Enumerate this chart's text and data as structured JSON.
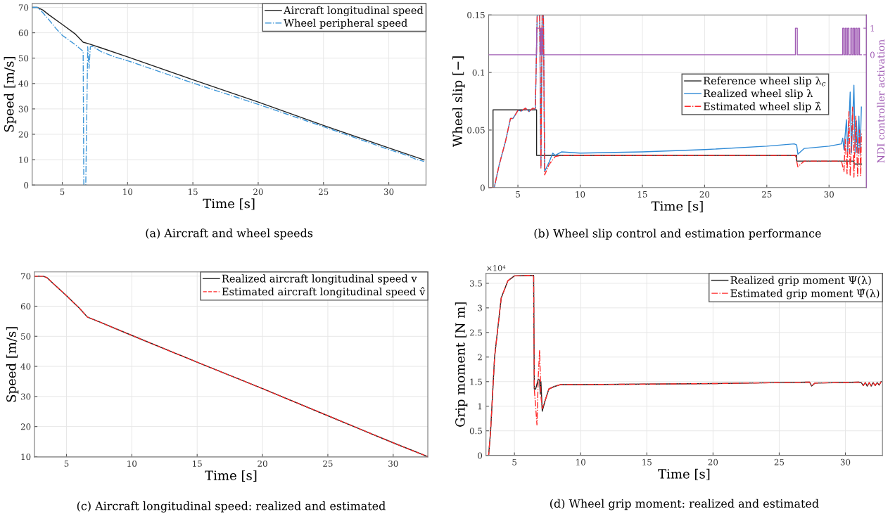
{
  "chart_data": [
    {
      "type": "line",
      "title": "(a) Aircraft and wheel speeds",
      "xlabel": "Time [s]",
      "ylabel": "Speed [m/s]",
      "xlim": [
        2.7,
        32.85
      ],
      "ylim": [
        0,
        71.5
      ],
      "xticks": [
        5,
        10,
        15,
        20,
        25,
        30
      ],
      "yticks": [
        0,
        10,
        20,
        30,
        40,
        50,
        60,
        70
      ],
      "grid": true,
      "legend": "top right",
      "series": [
        {
          "name": "Aircraft longitudinal speed",
          "color": "#222222",
          "line_style": "solid",
          "x": [
            2.7,
            3.1,
            3.5,
            4,
            5,
            6,
            6.6,
            7,
            8,
            10,
            15,
            20,
            25,
            30,
            32.7
          ],
          "values": [
            70,
            70,
            69,
            67,
            63.3,
            59.5,
            56.3,
            55.7,
            54,
            50.5,
            41.5,
            32.7,
            23.5,
            14.6,
            9.9
          ]
        },
        {
          "name": "Wheel peripheral speed",
          "color": "#3d96d8",
          "line_style": "dashdot",
          "x": [
            2.7,
            3.1,
            3.5,
            4,
            4.5,
            5,
            6,
            6.6,
            6.65,
            6.8,
            6.95,
            7.05,
            7.15,
            7.3,
            8,
            9,
            10,
            15,
            20,
            25,
            30,
            31.5,
            32,
            32.7
          ],
          "values": [
            70,
            70,
            68,
            65,
            61.8,
            59,
            55.3,
            52.7,
            0,
            0,
            54.5,
            46,
            54.5,
            54.7,
            52.5,
            50.5,
            49,
            40.2,
            31.8,
            23,
            14,
            11.5,
            10.3,
            9.3
          ]
        }
      ]
    },
    {
      "type": "line",
      "title": "(b) Wheel slip control and estimation performance",
      "xlabel": "Time [s]",
      "ylabel": "Wheel slip [−]",
      "y2label": "NDI controller activation",
      "xlim": [
        2.65,
        33
      ],
      "ylim": [
        0,
        0.15
      ],
      "y2lim": [
        -5,
        1.5
      ],
      "xticks": [
        5,
        10,
        15,
        20,
        25,
        30
      ],
      "yticks": [
        0,
        0.05,
        0.1,
        0.15
      ],
      "y2ticks": [
        0,
        1
      ],
      "grid": true,
      "legend": "right",
      "series": [
        {
          "name": "Reference wheel slip λ$_{c}$",
          "color": "#222222",
          "line_style": "solid",
          "x": [
            2.65,
            3.0,
            3.0,
            6.5,
            6.5,
            27.4,
            27.4,
            32.0,
            32.0,
            32.6
          ],
          "values": [
            0,
            0,
            0.0675,
            0.0675,
            0.028,
            0.028,
            0.023,
            0.023,
            0.0205,
            0.0205
          ]
        },
        {
          "name": "Realized wheel slip λ",
          "color": "#2f8ad6",
          "line_style": "solid",
          "x": [
            2.65,
            3.1,
            3.5,
            4,
            4.4,
            4.6,
            5,
            5.3,
            5.6,
            5.9,
            6.2,
            6.4,
            6.55,
            6.75,
            6.85,
            6.95,
            7.05,
            7.15,
            7.5,
            7.8,
            8,
            8.5,
            10,
            15,
            20,
            25,
            27.2,
            27.4,
            27.5,
            28,
            30,
            31,
            31.1,
            31.2,
            31.4,
            31.5,
            31.7,
            31.8,
            32.0,
            32.1,
            32.2,
            32.3,
            32.4,
            32.5,
            32.6
          ],
          "values": [
            0,
            0,
            0.02,
            0.04,
            0.06,
            0.06,
            0.067,
            0.0665,
            0.069,
            0.066,
            0.069,
            0.068,
            0.15,
            0.15,
            0.018,
            0.15,
            0.15,
            0.014,
            0.022,
            0.03,
            0.028,
            0.031,
            0.03,
            0.031,
            0.033,
            0.036,
            0.038,
            0.037,
            0.029,
            0.034,
            0.036,
            0.038,
            0.043,
            0.033,
            0.059,
            0.031,
            0.083,
            0.03,
            0.089,
            0.03,
            0.058,
            0.03,
            0.062,
            0.029,
            0.07
          ]
        },
        {
          "name": "Estimated wheel slip λ̂",
          "color": "#ff2a2a",
          "line_style": "dashdot",
          "x": [
            2.65,
            3.1,
            3.5,
            4,
            4.4,
            4.6,
            5,
            5.3,
            5.6,
            5.9,
            6.2,
            6.4,
            6.55,
            6.75,
            6.85,
            6.95,
            7.05,
            7.15,
            7.5,
            8,
            8.5,
            27.3,
            27.5,
            28,
            31,
            31.2,
            31.3,
            31.45,
            31.6,
            31.7,
            31.9,
            32.0,
            32.15,
            32.3,
            32.45,
            32.55,
            32.6
          ],
          "values": [
            0,
            0,
            0.02,
            0.04,
            0.06,
            0.06,
            0.067,
            0.0665,
            0.069,
            0.066,
            0.069,
            0.068,
            0.15,
            0.15,
            0.017,
            0.15,
            0.15,
            0.011,
            0.02,
            0.027,
            0.028,
            0.028,
            0.018,
            0.023,
            0.023,
            0.014,
            0.042,
            0.012,
            0.066,
            0.01,
            0.07,
            0.009,
            0.062,
            0.01,
            0.05,
            0.01,
            0.048
          ]
        },
        {
          "color": "#a05cb4",
          "line_style": "solid",
          "axis": "y2",
          "x": [
            2.65,
            6.5,
            6.5,
            6.83,
            6.83,
            6.88,
            6.88,
            7.0,
            7.0,
            27.3,
            27.3,
            27.45,
            27.45,
            31.1,
            31.1,
            31.2,
            31.2,
            31.3,
            31.3,
            31.4,
            31.4,
            31.5,
            31.5,
            31.6,
            31.6,
            31.75,
            31.75,
            31.85,
            31.85,
            31.95,
            31.95,
            32.05,
            32.05,
            32.15,
            32.15,
            32.25,
            32.25,
            32.35,
            32.35,
            32.45,
            32.45,
            32.6
          ],
          "values": [
            0,
            0,
            1,
            1,
            0,
            0,
            1,
            1,
            0,
            0,
            1,
            1,
            0,
            0,
            1,
            1,
            0,
            0,
            1,
            1,
            0,
            0,
            1,
            1,
            0,
            0,
            1,
            1,
            0,
            0,
            1,
            1,
            0,
            0,
            1,
            1,
            0,
            0,
            1,
            1,
            0,
            0
          ]
        }
      ]
    },
    {
      "type": "line",
      "title": "(c) Aircraft longitudinal speed: realized and estimated",
      "xlabel": "Time [s]",
      "ylabel": "Speed [m/s]",
      "xlim": [
        2.55,
        32.65
      ],
      "ylim": [
        9.9,
        71.4
      ],
      "xticks": [
        5,
        10,
        15,
        20,
        25,
        30
      ],
      "yticks": [
        10,
        20,
        30,
        40,
        50,
        60,
        70
      ],
      "grid": true,
      "legend": "top right",
      "series": [
        {
          "name": "Realized aircraft longitudinal speed v",
          "color": "#222222",
          "line_style": "solid",
          "x": [
            2.55,
            3.2,
            3.5,
            4,
            5,
            6,
            6.6,
            7.5,
            10,
            15,
            20,
            25,
            30,
            32.65
          ],
          "values": [
            70,
            70,
            69.5,
            67.5,
            63.5,
            59.3,
            56.4,
            54.8,
            50.3,
            41.4,
            32.6,
            23.6,
            14.6,
            10
          ]
        },
        {
          "name": "Estimated aircraft longitudinal speed v̂",
          "color": "#ff2a2a",
          "line_style": "dashed",
          "x": [
            2.55,
            3.2,
            3.5,
            4,
            5,
            6,
            6.6,
            7.5,
            10,
            15,
            20,
            25,
            30,
            32.65
          ],
          "values": [
            70,
            70,
            69.5,
            67.5,
            63.5,
            59.3,
            56.4,
            54.8,
            50.3,
            41.4,
            32.6,
            23.6,
            14.6,
            10
          ]
        }
      ]
    },
    {
      "type": "line",
      "title": "(d) Wheel grip moment: realized and estimated",
      "xlabel": "Time [s]",
      "ylabel": "Grip moment [N m]",
      "annotations": [
        "×10⁴"
      ],
      "xlim": [
        2.85,
        32.8
      ],
      "ylim": [
        0,
        3.7
      ],
      "xticks": [
        5,
        10,
        15,
        20,
        25,
        30
      ],
      "yticks": [
        0,
        0.5,
        1,
        1.5,
        2,
        2.5,
        3,
        3.5
      ],
      "grid": true,
      "legend": "top right",
      "series": [
        {
          "name": "Realized grip moment Ψ(λ)",
          "color": "#222222",
          "line_style": "solid",
          "x": [
            2.85,
            3.05,
            3.2,
            3.5,
            4,
            4.5,
            5,
            6,
            6.45,
            6.5,
            6.6,
            6.8,
            6.9,
            6.95,
            7.0,
            7.1,
            7.3,
            7.6,
            8,
            8.5,
            10,
            15,
            20,
            25,
            27.3,
            27.45,
            27.7,
            31,
            31.2,
            31.35,
            31.5,
            31.65,
            31.8,
            31.95,
            32.1,
            32.25,
            32.4,
            32.55,
            32.7
          ],
          "values": [
            0,
            0,
            0.5,
            2,
            3.2,
            3.55,
            3.65,
            3.66,
            3.66,
            1.35,
            1.35,
            1.55,
            1.53,
            1.25,
            1.5,
            0.9,
            1.1,
            1.35,
            1.4,
            1.44,
            1.44,
            1.45,
            1.46,
            1.48,
            1.49,
            1.41,
            1.47,
            1.49,
            1.48,
            1.42,
            1.48,
            1.41,
            1.48,
            1.41,
            1.48,
            1.42,
            1.48,
            1.43,
            1.5
          ]
        },
        {
          "name": "Estimated grip moment Ψ̂(λ)",
          "color": "#ff2a2a",
          "line_style": "dashdot",
          "x": [
            2.85,
            3.05,
            3.2,
            3.5,
            4,
            4.5,
            5,
            6,
            6.45,
            6.5,
            6.6,
            6.7,
            6.8,
            6.9,
            7.0,
            7.1,
            7.3,
            7.6,
            8,
            8.5,
            10,
            15,
            20,
            25,
            27.3,
            27.45,
            27.7,
            31,
            31.2,
            31.35,
            31.5,
            31.65,
            31.8,
            31.95,
            32.1,
            32.25,
            32.4,
            32.55,
            32.7
          ],
          "values": [
            0,
            0,
            0.5,
            2,
            3.2,
            3.55,
            3.65,
            3.66,
            3.66,
            1.35,
            1.0,
            0.62,
            1.6,
            2.13,
            1.2,
            0.95,
            1.1,
            1.35,
            1.4,
            1.44,
            1.44,
            1.45,
            1.46,
            1.48,
            1.49,
            1.41,
            1.47,
            1.49,
            1.48,
            1.42,
            1.48,
            1.41,
            1.48,
            1.41,
            1.48,
            1.42,
            1.48,
            1.43,
            1.5
          ]
        }
      ]
    }
  ]
}
